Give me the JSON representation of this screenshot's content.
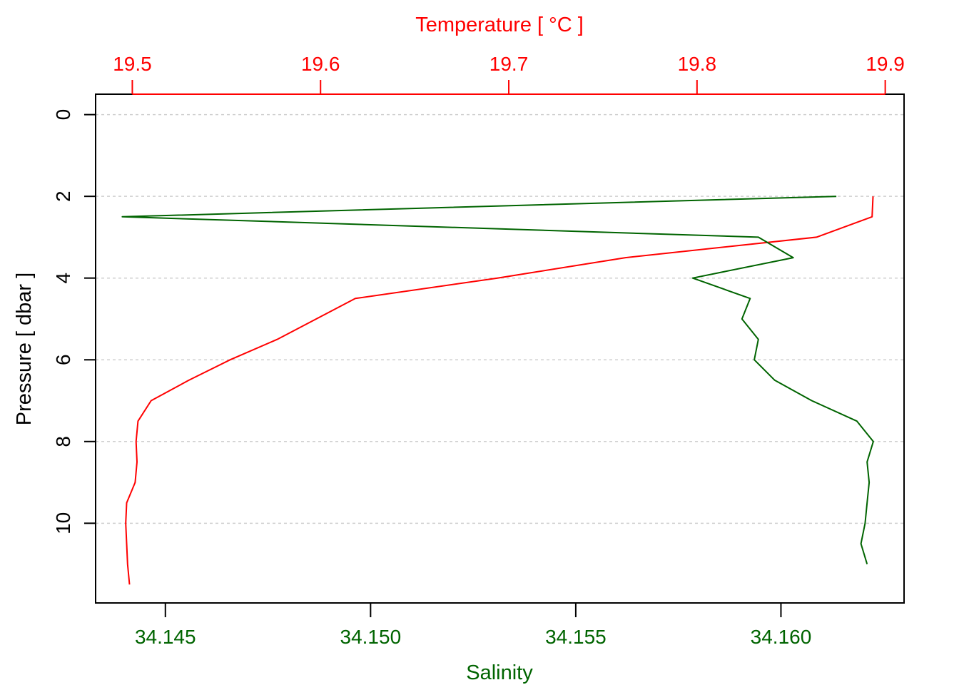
{
  "chart_data": {
    "type": "line",
    "title": "",
    "orientation": "profile",
    "y_axis": {
      "label": "Pressure [ dbar ]",
      "range": [
        11.95,
        -0.5
      ],
      "reversed": true,
      "ticks": [
        0,
        2,
        4,
        6,
        8,
        10
      ],
      "grid": "dotted-horizontal",
      "color": "#000000"
    },
    "top_axis": {
      "label": "Temperature [ °C ]",
      "range": [
        19.4805,
        19.91
      ],
      "ticks": [
        19.5,
        19.6,
        19.7,
        19.8,
        19.9
      ],
      "color": "#ff0000"
    },
    "bottom_axis": {
      "label": "Salinity",
      "range": [
        34.1433,
        34.163
      ],
      "ticks": [
        34.145,
        34.15,
        34.155,
        34.16
      ],
      "tick_decimals": 3,
      "color": "#006400"
    },
    "series": [
      {
        "axis": "top",
        "color": "#ff0000",
        "points": [
          {
            "x": 19.8935,
            "p": 2.0
          },
          {
            "x": 19.893,
            "p": 2.5
          },
          {
            "x": 19.8635,
            "p": 3.0
          },
          {
            "x": 19.762,
            "p": 3.5
          },
          {
            "x": 19.694,
            "p": 4.0
          },
          {
            "x": 19.6185,
            "p": 4.5
          },
          {
            "x": 19.577,
            "p": 5.5
          },
          {
            "x": 19.552,
            "p": 6.0
          },
          {
            "x": 19.53,
            "p": 6.5
          },
          {
            "x": 19.51,
            "p": 7.0
          },
          {
            "x": 19.503,
            "p": 7.5
          },
          {
            "x": 19.502,
            "p": 8.0
          },
          {
            "x": 19.5025,
            "p": 8.5
          },
          {
            "x": 19.5015,
            "p": 9.0
          },
          {
            "x": 19.497,
            "p": 9.5
          },
          {
            "x": 19.4965,
            "p": 10.0
          },
          {
            "x": 19.497,
            "p": 10.5
          },
          {
            "x": 19.4975,
            "p": 11.0
          },
          {
            "x": 19.4985,
            "p": 11.5
          }
        ]
      },
      {
        "axis": "bottom",
        "color": "#006400",
        "points": [
          {
            "x": 34.16135,
            "p": 2.0
          },
          {
            "x": 34.14395,
            "p": 2.5
          },
          {
            "x": 34.15945,
            "p": 3.0
          },
          {
            "x": 34.1603,
            "p": 3.5
          },
          {
            "x": 34.15785,
            "p": 4.0
          },
          {
            "x": 34.15925,
            "p": 4.5
          },
          {
            "x": 34.15905,
            "p": 5.0
          },
          {
            "x": 34.15945,
            "p": 5.5
          },
          {
            "x": 34.15935,
            "p": 6.0
          },
          {
            "x": 34.15985,
            "p": 6.5
          },
          {
            "x": 34.16075,
            "p": 7.0
          },
          {
            "x": 34.16185,
            "p": 7.5
          },
          {
            "x": 34.16225,
            "p": 8.0
          },
          {
            "x": 34.1621,
            "p": 8.5
          },
          {
            "x": 34.16215,
            "p": 9.0
          },
          {
            "x": 34.1621,
            "p": 9.5
          },
          {
            "x": 34.16205,
            "p": 10.0
          },
          {
            "x": 34.16195,
            "p": 10.5
          },
          {
            "x": 34.1621,
            "p": 11.0
          }
        ]
      }
    ]
  }
}
